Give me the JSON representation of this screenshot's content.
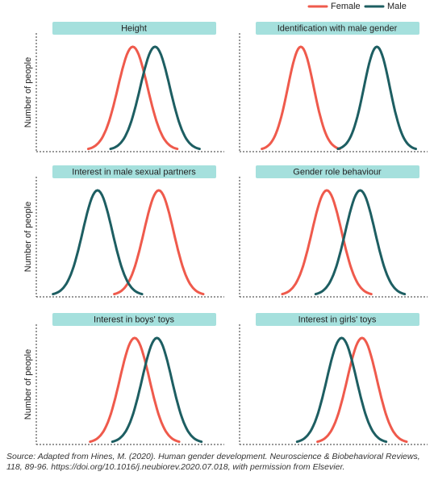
{
  "chart_data": [
    {
      "type": "density",
      "title": "Height",
      "ylabel": "Number of people",
      "xlim": [
        0,
        100
      ],
      "series": [
        {
          "name": "Female",
          "color": "#ef5a4c",
          "mean": 52,
          "sd": 8
        },
        {
          "name": "Male",
          "color": "#1d5e62",
          "mean": 64,
          "sd": 8
        }
      ]
    },
    {
      "type": "density",
      "title": "Identification with male gender",
      "xlim": [
        0,
        100
      ],
      "series": [
        {
          "name": "Female",
          "color": "#ef5a4c",
          "mean": 33,
          "sd": 7
        },
        {
          "name": "Male",
          "color": "#1d5e62",
          "mean": 74,
          "sd": 7
        }
      ]
    },
    {
      "type": "density",
      "title": "Interest in male sexual partners",
      "ylabel": "Number of people",
      "xlim": [
        0,
        100
      ],
      "series": [
        {
          "name": "Female",
          "color": "#ef5a4c",
          "mean": 66,
          "sd": 8
        },
        {
          "name": "Male",
          "color": "#1d5e62",
          "mean": 33,
          "sd": 8
        }
      ]
    },
    {
      "type": "density",
      "title": "Gender role behaviour",
      "xlim": [
        0,
        100
      ],
      "series": [
        {
          "name": "Female",
          "color": "#ef5a4c",
          "mean": 47,
          "sd": 8
        },
        {
          "name": "Male",
          "color": "#1d5e62",
          "mean": 65,
          "sd": 8
        }
      ]
    },
    {
      "type": "density",
      "title": "Interest in boys' toys",
      "ylabel": "Number of people",
      "xlim": [
        0,
        100
      ],
      "series": [
        {
          "name": "Female",
          "color": "#ef5a4c",
          "mean": 53,
          "sd": 8
        },
        {
          "name": "Male",
          "color": "#1d5e62",
          "mean": 65,
          "sd": 8
        }
      ]
    },
    {
      "type": "density",
      "title": "Interest in girls' toys",
      "xlim": [
        0,
        100
      ],
      "series": [
        {
          "name": "Female",
          "color": "#ef5a4c",
          "mean": 66,
          "sd": 8
        },
        {
          "name": "Male",
          "color": "#1d5e62",
          "mean": 55,
          "sd": 8
        }
      ]
    }
  ],
  "source": "Source: Adapted from Hines, M. (2020). Human gender development. Neuroscience & Biobehavioral Reviews, 118, 89-96. https://doi.org/10.1016/j.neubiorev.2020.07.018, with permission from Elsevier."
}
